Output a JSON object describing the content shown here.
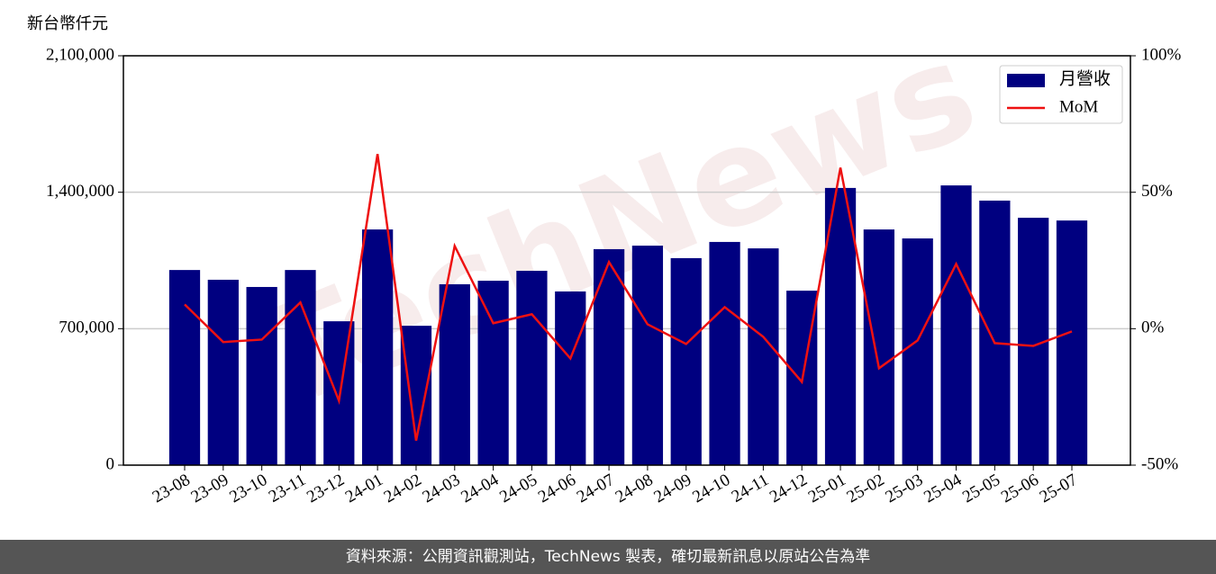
{
  "chart_data": {
    "type": "bar-line",
    "y_label": "新台幣仟元",
    "watermark": "TechNews",
    "categories": [
      "23-08",
      "23-09",
      "23-10",
      "23-11",
      "23-12",
      "24-01",
      "24-02",
      "24-03",
      "24-04",
      "24-05",
      "24-06",
      "24-07",
      "24-08",
      "24-09",
      "24-10",
      "24-11",
      "24-12",
      "25-01",
      "25-02",
      "25-03",
      "25-04",
      "25-05",
      "25-06",
      "25-07"
    ],
    "series": [
      {
        "name": "月營收",
        "color": "#000080",
        "type": "bar",
        "values": [
          1001000,
          951000,
          914000,
          1001000,
          738000,
          1209000,
          715000,
          928000,
          946000,
          997000,
          891000,
          1108000,
          1126000,
          1062000,
          1145000,
          1112000,
          895000,
          1422000,
          1209000,
          1163000,
          1435000,
          1357000,
          1269000,
          1255000
        ]
      },
      {
        "name": "MoM",
        "color": "#ee1111",
        "type": "line",
        "axis": "y2",
        "values": [
          8.9,
          -4.9,
          -4.0,
          9.6,
          -26.4,
          64.0,
          -41.0,
          30.3,
          2.0,
          5.3,
          -10.9,
          24.4,
          1.6,
          -5.6,
          7.9,
          -3.0,
          -19.5,
          59.0,
          -14.5,
          -4.3,
          23.7,
          -5.3,
          -6.3,
          -1.0
        ]
      }
    ],
    "ylim": [
      0,
      2100000
    ],
    "yticks": [
      0,
      {
        "value": 700000,
        "label": "700,000"
      },
      {
        "value": 1400000,
        "label": "1,400,000"
      },
      {
        "value": 2100000,
        "label": "2,100,000"
      }
    ],
    "y2lim": [
      -50,
      100
    ],
    "y2ticks": [
      {
        "value": -50,
        "label": "-50%"
      },
      {
        "value": 0,
        "label": "0%"
      },
      {
        "value": 50,
        "label": "50%"
      },
      {
        "value": 100,
        "label": "100%"
      }
    ],
    "grid": true,
    "legend": "upper right"
  },
  "footer": "資料來源：公開資訊觀測站，TechNews 製表，確切最新訊息以原站公告為準"
}
